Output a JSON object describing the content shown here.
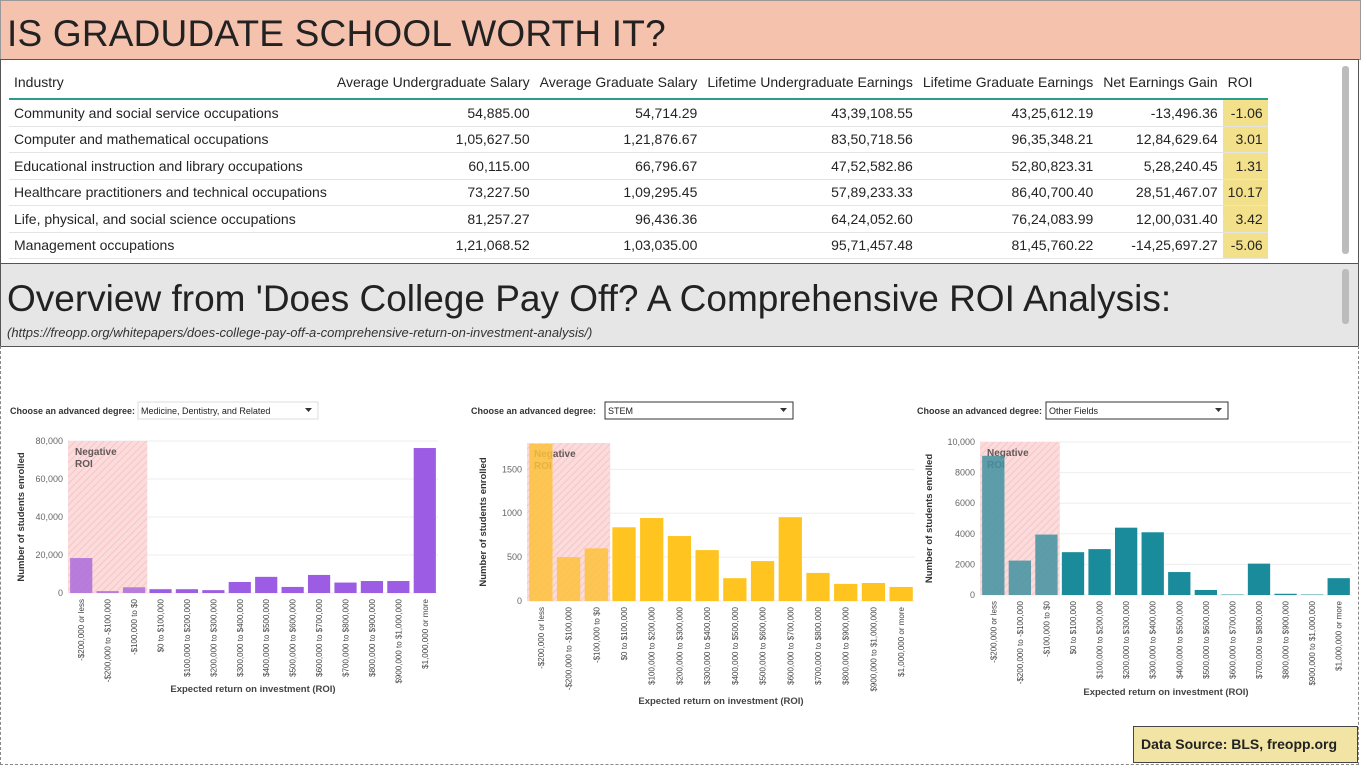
{
  "header": {
    "title": "IS GRADUDATE SCHOOL WORTH IT?"
  },
  "table": {
    "columns": [
      "Industry",
      "Average Undergraduate Salary",
      "Average Graduate Salary",
      "Lifetime Undergraduate Earnings",
      "Lifetime Graduate Earnings",
      "Net Earnings Gain",
      "ROI"
    ],
    "rows": [
      [
        "Community and social service occupations",
        "54,885.00",
        "54,714.29",
        "43,39,108.55",
        "43,25,612.19",
        "-13,496.36",
        "-1.06"
      ],
      [
        "Computer and mathematical occupations",
        "1,05,627.50",
        "1,21,876.67",
        "83,50,718.56",
        "96,35,348.21",
        "12,84,629.64",
        "3.01"
      ],
      [
        "Educational instruction and library occupations",
        "60,115.00",
        "66,796.67",
        "47,52,582.86",
        "52,80,823.31",
        "5,28,240.45",
        "1.31"
      ],
      [
        "Healthcare practitioners and technical occupations",
        "73,227.50",
        "1,09,295.45",
        "57,89,233.33",
        "86,40,700.40",
        "28,51,467.07",
        "10.17"
      ],
      [
        "Life, physical, and social science occupations",
        "81,257.27",
        "96,436.36",
        "64,24,052.60",
        "76,24,083.99",
        "12,00,031.40",
        "3.42"
      ],
      [
        "Management occupations",
        "1,21,068.52",
        "1,03,035.00",
        "95,71,457.48",
        "81,45,760.22",
        "-14,25,697.27",
        "-5.06"
      ]
    ]
  },
  "overview": {
    "title": "Overview from 'Does College Pay Off? A Comprehensive ROI Analysis:",
    "url": "(https://freopp.org/whitepapers/does-college-pay-off-a-comprehensive-return-on-investment-analysis/)"
  },
  "source": "Data Source: BLS, freopp.org",
  "chart_data": [
    {
      "type": "bar",
      "selector_label": "Choose an advanced degree:",
      "selected": "Medicine, Dentistry, and Related",
      "annotation": "Negative ROI",
      "x_label": "Expected return on investment (ROI)",
      "y_label": "Number of students enrolled",
      "categories": [
        "-$200,000 or less",
        "-$200,000 to -$100,000",
        "-$100,000 to $0",
        "$0 to $100,000",
        "$100,000 to $200,000",
        "$200,000 to $300,000",
        "$300,000 to $400,000",
        "$400,000 to $500,000",
        "$500,000 to $600,000",
        "$600,000 to $700,000",
        "$700,000 to $800,000",
        "$800,000 to $900,000",
        "$900,000 to $1,000,000",
        "$1,000,000 or more"
      ],
      "values": [
        18400,
        1000,
        3000,
        2000,
        2000,
        1500,
        5800,
        8500,
        3200,
        9500,
        5500,
        6300,
        6300,
        76300
      ],
      "color": "#9c5ce3",
      "ylim": [
        0,
        80000
      ],
      "yticks": [
        0,
        {
          "value": 20000,
          "label": "20,000"
        },
        {
          "value": 40000,
          "label": "40,000"
        },
        {
          "value": 60000,
          "label": "60,000"
        },
        {
          "value": 80000,
          "label": "80,000"
        }
      ],
      "grid": true
    },
    {
      "type": "bar",
      "selector_label": "Choose an advanced degree:",
      "selected": "STEM",
      "annotation": "Negative ROI",
      "x_label": "Expected return on investment (ROI)",
      "y_label": "Number of students enrolled",
      "categories": [
        "-$200,000 or less",
        "-$200,000 to -$100,000",
        "-$100,000 to $0",
        "$0 to $100,000",
        "$100,000 to $200,000",
        "$200,000 to $300,000",
        "$300,000 to $400,000",
        "$400,000 to $500,000",
        "$500,000 to $600,000",
        "$600,000 to $700,000",
        "$700,000 to $800,000",
        "$800,000 to $900,000",
        "$900,000 to $1,000,000",
        "$1,000,000 or more"
      ],
      "values": [
        1790,
        500,
        600,
        840,
        945,
        740,
        580,
        260,
        455,
        955,
        320,
        195,
        205,
        160
      ],
      "color": "#ffc420",
      "ylim": [
        0,
        1800
      ],
      "yticks": [
        0,
        500,
        1000,
        1500
      ],
      "grid": true
    },
    {
      "type": "bar",
      "selector_label": "Choose an advanced degree:",
      "selected": "Other Fields",
      "annotation": "Negative ROI",
      "x_label": "Expected return on investment (ROI)",
      "y_label": "Number of students enrolled",
      "categories": [
        "-$200,000 or less",
        "-$200,000 to -$100,000",
        "-$100,000 to $0",
        "$0 to $100,000",
        "$100,000 to $200,000",
        "$200,000 to $300,000",
        "$300,000 to $400,000",
        "$400,000 to $500,000",
        "$500,000 to $600,000",
        "$600,000 to $700,000",
        "$700,000 to $800,000",
        "$800,000 to $900,000",
        "$900,000 to $1,000,000",
        "$1,000,000 or more"
      ],
      "values": [
        9100,
        2250,
        3950,
        2800,
        3000,
        4400,
        4100,
        1500,
        330,
        30,
        2050,
        80,
        30,
        1100
      ],
      "color": "#1a8b9b",
      "ylim": [
        0,
        10000
      ],
      "yticks": [
        0,
        2000,
        4000,
        6000,
        8000,
        {
          "value": 10000,
          "label": "10,000"
        }
      ],
      "grid": true
    }
  ]
}
